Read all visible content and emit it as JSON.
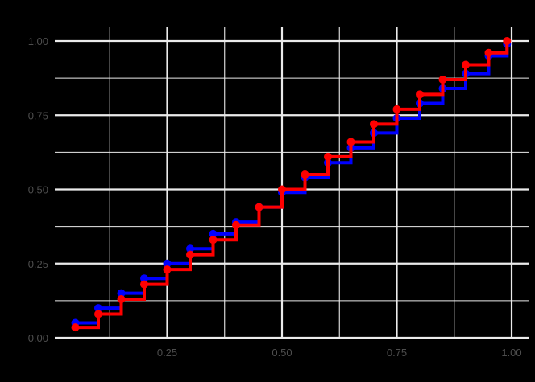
{
  "chart_data": {
    "type": "line",
    "subtype": "step-with-points",
    "title": "",
    "xlabel": "",
    "ylabel": "",
    "xlim": [
      0,
      1
    ],
    "ylim": [
      0,
      1
    ],
    "grid": true,
    "legend": null,
    "x_ticks": [
      0.25,
      0.5,
      0.75,
      1.0
    ],
    "x_tick_labels": [
      "0.25",
      "0.50",
      "0.75",
      "1.00"
    ],
    "y_ticks": [
      0.0,
      0.25,
      0.5,
      0.75,
      1.0
    ],
    "y_tick_labels": [
      "0.00",
      "0.25",
      "0.50",
      "0.75",
      "1.00"
    ],
    "x": [
      0.05,
      0.1,
      0.15,
      0.2,
      0.25,
      0.3,
      0.35,
      0.4,
      0.45,
      0.5,
      0.55,
      0.6,
      0.65,
      0.7,
      0.75,
      0.8,
      0.85,
      0.9,
      0.95,
      0.99
    ],
    "series": [
      {
        "name": "blue",
        "color": "#0000ff",
        "values": [
          0.05,
          0.1,
          0.15,
          0.2,
          0.25,
          0.3,
          0.35,
          0.39,
          0.44,
          0.49,
          0.54,
          0.59,
          0.64,
          0.69,
          0.74,
          0.79,
          0.84,
          0.89,
          0.95,
          0.99
        ]
      },
      {
        "name": "red",
        "color": "#ff0000",
        "values": [
          0.035,
          0.08,
          0.13,
          0.18,
          0.23,
          0.28,
          0.33,
          0.38,
          0.44,
          0.5,
          0.55,
          0.61,
          0.66,
          0.72,
          0.77,
          0.82,
          0.87,
          0.92,
          0.96,
          1.0
        ]
      }
    ]
  },
  "colors": {
    "background": "#000000",
    "grid": "#ebebeb",
    "tick_text": "#4d4d4d"
  }
}
